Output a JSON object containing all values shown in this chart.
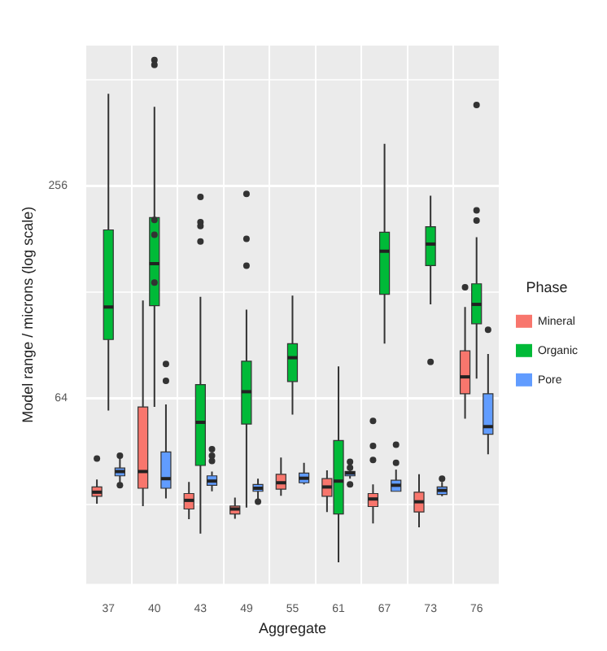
{
  "chart_data": {
    "type": "box",
    "xlabel": "Aggregate",
    "ylabel": "Model range / microns (log scale)",
    "legend_title": "Phase",
    "legend": "right",
    "log": "y",
    "grid": true,
    "categories": [
      "37",
      "40",
      "43",
      "49",
      "55",
      "61",
      "67",
      "73",
      "76"
    ],
    "ylim": [
      19,
      640
    ],
    "yticks": [
      {
        "value": 32,
        "label": null
      },
      64,
      {
        "value": 128,
        "label": null
      },
      256,
      {
        "value": 512,
        "label": null
      }
    ],
    "series": [
      {
        "name": "Mineral",
        "color": "#f8766d",
        "boxes": [
          {
            "low": 32.1,
            "q1": 33.7,
            "median": 34.6,
            "q3": 35.8,
            "high": 37.6,
            "outliers": [
              43.1
            ]
          },
          {
            "low": 31.6,
            "q1": 35.5,
            "median": 39.6,
            "q3": 60.4,
            "high": 121
          },
          {
            "low": 29,
            "q1": 31,
            "median": 32.8,
            "q3": 34.3,
            "high": 37
          },
          {
            "low": 29.1,
            "q1": 30,
            "median": 31,
            "q3": 31.6,
            "high": 33.4
          },
          {
            "low": 33.8,
            "q1": 35.3,
            "median": 36.8,
            "q3": 38.9,
            "high": 43.4
          },
          {
            "low": 30.4,
            "q1": 33.7,
            "median": 35.8,
            "q3": 37.8,
            "high": 39.9
          },
          {
            "low": 28.2,
            "q1": 31.5,
            "median": 33.1,
            "q3": 34.3,
            "high": 36.4,
            "outliers": [
              55.1,
              46.8,
              42.7
            ]
          },
          {
            "low": 27.5,
            "q1": 30.4,
            "median": 32.5,
            "q3": 34.6,
            "high": 38.9
          },
          {
            "low": 55.9,
            "q1": 65.8,
            "median": 73.5,
            "q3": 87.1,
            "high": 116,
            "outliers": [
              132
            ]
          }
        ]
      },
      {
        "name": "Organic",
        "color": "#00ba38",
        "boxes": [
          {
            "low": 59,
            "q1": 93.8,
            "median": 116,
            "q3": 192,
            "high": 467
          },
          {
            "low": 60.4,
            "q1": 117,
            "median": 154,
            "q3": 208,
            "high": 429,
            "outliers": [
              582,
              564,
              205,
              186,
              136
            ]
          },
          {
            "low": 26.4,
            "q1": 41.2,
            "median": 54.6,
            "q3": 69.9,
            "high": 124,
            "outliers": [
              238,
              202,
              197,
              178
            ]
          },
          {
            "low": 31.3,
            "q1": 54,
            "median": 66.7,
            "q3": 81.4,
            "high": 114,
            "outliers": [
              243,
              181,
              152
            ]
          },
          {
            "low": 57.4,
            "q1": 71.3,
            "median": 83.3,
            "q3": 91.3,
            "high": 125
          },
          {
            "low": 21.9,
            "q1": 30,
            "median": 37.2,
            "q3": 48.5,
            "high": 78.7
          },
          {
            "low": 91.3,
            "q1": 126,
            "median": 167,
            "q3": 189,
            "high": 337
          },
          {
            "low": 118,
            "q1": 152,
            "median": 175,
            "q3": 196,
            "high": 240,
            "outliers": [
              81
            ]
          },
          {
            "low": 72.7,
            "q1": 104,
            "median": 118,
            "q3": 135,
            "high": 183,
            "outliers": [
              434,
              218,
              204
            ]
          }
        ]
      },
      {
        "name": "Pore",
        "color": "#619cff",
        "boxes": [
          {
            "low": 36.4,
            "q1": 38.5,
            "median": 39.6,
            "q3": 40.5,
            "high": 43.9,
            "outliers": [
              43.9,
              36.2
            ]
          },
          {
            "low": 33.2,
            "q1": 35.5,
            "median": 37.8,
            "q3": 45,
            "high": 61.4,
            "outliers": [
              80,
              71.6
            ]
          },
          {
            "low": 34.8,
            "q1": 36.2,
            "median": 37.2,
            "q3": 38.5,
            "high": 39.6,
            "outliers": [
              45.8,
              43.9,
              42.4
            ]
          },
          {
            "low": 32.5,
            "q1": 34.8,
            "median": 35.5,
            "q3": 36.4,
            "high": 37.8,
            "outliers": [
              32.5
            ]
          },
          {
            "low": 36.4,
            "q1": 36.8,
            "median": 37.9,
            "q3": 39.2,
            "high": 41.9
          },
          {
            "low": 37.8,
            "q1": 38.5,
            "median": 39.2,
            "q3": 39.6,
            "high": 41.7,
            "outliers": [
              42.2,
              40.6,
              36.4
            ]
          },
          {
            "low": 34.8,
            "q1": 34.8,
            "median": 36.2,
            "q3": 37.4,
            "high": 40.1,
            "outliers": [
              47.2,
              41.9
            ]
          },
          {
            "low": 33.7,
            "q1": 34.1,
            "median": 35,
            "q3": 35.8,
            "high": 37,
            "outliers": [
              37.8
            ]
          },
          {
            "low": 44.3,
            "q1": 50.5,
            "median": 53.1,
            "q3": 65.8,
            "high": 85.3,
            "outliers": [
              100
            ]
          }
        ]
      }
    ]
  }
}
